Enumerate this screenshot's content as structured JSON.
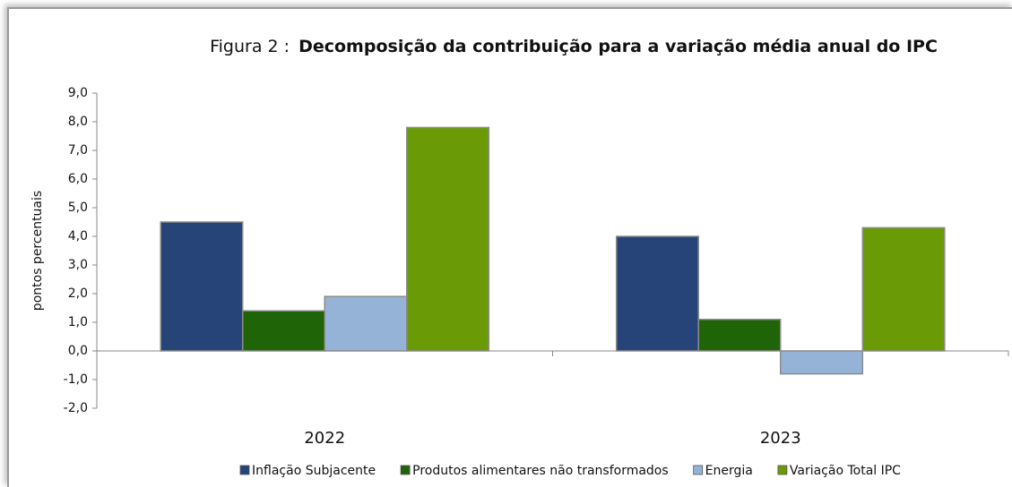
{
  "chart_data": {
    "type": "bar",
    "title_label": "Figura 2 :",
    "title": "Decomposição da contribuição para a variação média anual do IPC",
    "ylabel": "pontos percentuais",
    "categories": [
      "2022",
      "2023"
    ],
    "series": [
      {
        "name": "Inflação Subjacente",
        "color": "#264478",
        "values": [
          4.5,
          4.0
        ]
      },
      {
        "name": "Produtos alimentares não transformados",
        "color": "#206408",
        "values": [
          1.4,
          1.1
        ]
      },
      {
        "name": "Energia",
        "color": "#95b3d7",
        "values": [
          1.9,
          -0.8
        ]
      },
      {
        "name": "Variação Total IPC",
        "color": "#6a9a06",
        "values": [
          7.8,
          4.3
        ]
      }
    ],
    "ylim": [
      -2,
      9
    ],
    "yticks": [
      {
        "value": -2,
        "label": "-2,0"
      },
      {
        "value": -1,
        "label": "-1,0"
      },
      {
        "value": 0,
        "label": "0,0"
      },
      {
        "value": 1,
        "label": "1,0"
      },
      {
        "value": 2,
        "label": "2,0"
      },
      {
        "value": 3,
        "label": "3,0"
      },
      {
        "value": 4,
        "label": "4,0"
      },
      {
        "value": 5,
        "label": "5,0"
      },
      {
        "value": 6,
        "label": "6,0"
      },
      {
        "value": 7,
        "label": "7,0"
      },
      {
        "value": 8,
        "label": "8,0"
      },
      {
        "value": 9,
        "label": "9,0"
      }
    ],
    "legend": "bottom"
  }
}
